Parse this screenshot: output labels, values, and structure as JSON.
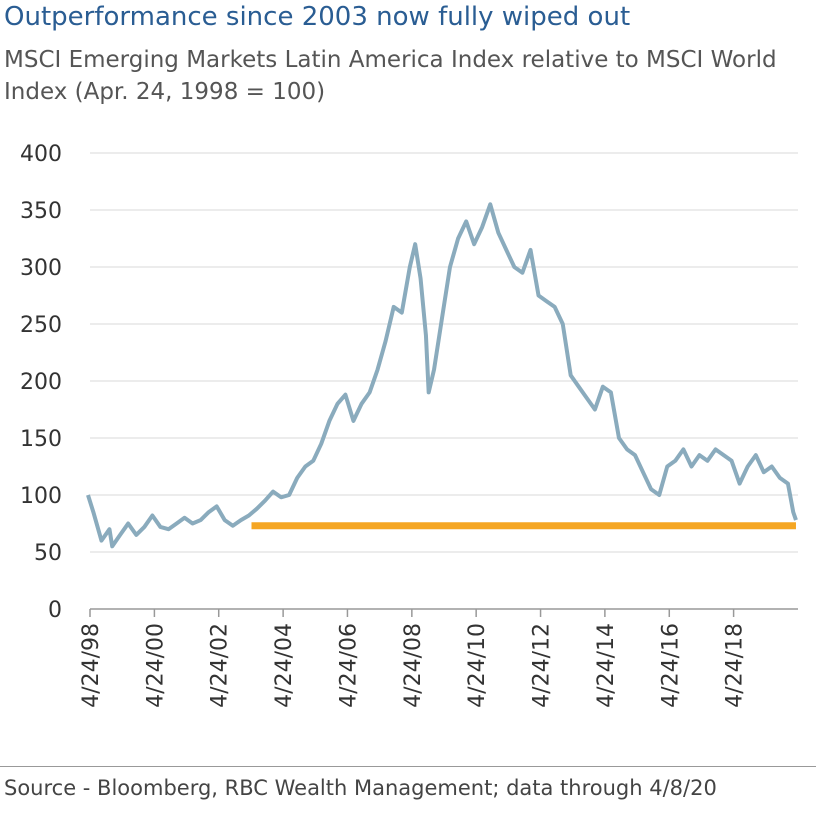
{
  "chart_data": {
    "type": "line",
    "title": "Outperformance since 2003 now fully wiped out",
    "subtitle": "MSCI Emerging Markets Latin America Index relative to MSCI World Index (Apr. 24, 1998 = 100)",
    "source": "Source - Bloomberg, RBC Wealth Management; data through 4/8/20",
    "x": [
      "1998-04",
      "1998-06",
      "1998-09",
      "1998-12",
      "1999-01",
      "1999-04",
      "1999-07",
      "1999-10",
      "2000-01",
      "2000-04",
      "2000-07",
      "2000-10",
      "2001-01",
      "2001-04",
      "2001-07",
      "2001-10",
      "2002-01",
      "2002-04",
      "2002-07",
      "2002-10",
      "2003-01",
      "2003-04",
      "2003-07",
      "2003-10",
      "2004-01",
      "2004-04",
      "2004-07",
      "2004-10",
      "2005-01",
      "2005-04",
      "2005-07",
      "2005-10",
      "2006-01",
      "2006-04",
      "2006-07",
      "2006-10",
      "2007-01",
      "2007-04",
      "2007-07",
      "2007-10",
      "2008-01",
      "2008-04",
      "2008-06",
      "2008-08",
      "2008-10",
      "2008-11",
      "2009-01",
      "2009-04",
      "2009-07",
      "2009-10",
      "2010-01",
      "2010-04",
      "2010-07",
      "2010-10",
      "2011-01",
      "2011-04",
      "2011-07",
      "2011-10",
      "2012-01",
      "2012-04",
      "2012-07",
      "2012-10",
      "2013-01",
      "2013-04",
      "2013-07",
      "2013-10",
      "2014-01",
      "2014-04",
      "2014-07",
      "2014-10",
      "2015-01",
      "2015-04",
      "2015-07",
      "2015-10",
      "2016-01",
      "2016-04",
      "2016-07",
      "2016-10",
      "2017-01",
      "2017-04",
      "2017-07",
      "2017-10",
      "2018-01",
      "2018-04",
      "2018-07",
      "2018-10",
      "2019-01",
      "2019-04",
      "2019-07",
      "2019-10",
      "2020-01",
      "2020-03",
      "2020-04"
    ],
    "series": [
      {
        "name": "MSCI EM Latin America relative to MSCI World",
        "color": "#8aabbd",
        "values": [
          100,
          85,
          60,
          70,
          55,
          65,
          75,
          65,
          72,
          82,
          72,
          70,
          75,
          80,
          75,
          78,
          85,
          90,
          78,
          73,
          78,
          82,
          88,
          95,
          103,
          98,
          100,
          115,
          125,
          130,
          145,
          165,
          180,
          188,
          165,
          180,
          190,
          210,
          235,
          265,
          260,
          300,
          320,
          290,
          240,
          190,
          210,
          255,
          300,
          325,
          340,
          320,
          335,
          355,
          330,
          315,
          300,
          295,
          315,
          275,
          270,
          265,
          250,
          205,
          195,
          185,
          175,
          195,
          190,
          150,
          140,
          135,
          120,
          105,
          100,
          125,
          130,
          140,
          125,
          135,
          130,
          140,
          135,
          130,
          110,
          125,
          135,
          120,
          125,
          115,
          110,
          85,
          78
        ]
      }
    ],
    "reference_line": {
      "x": [
        "2003-05",
        "2020-04"
      ],
      "value": 73,
      "color": "#f5a623"
    },
    "xlim": [
      "1998-04-24",
      "2020-04-24"
    ],
    "xticks": [
      {
        "value": "1998-04-24",
        "label": "4/24/98"
      },
      {
        "value": "2000-04-24",
        "label": "4/24/00"
      },
      {
        "value": "2002-04-24",
        "label": "4/24/02"
      },
      {
        "value": "2004-04-24",
        "label": "4/24/04"
      },
      {
        "value": "2006-04-24",
        "label": "4/24/06"
      },
      {
        "value": "2008-04-24",
        "label": "4/24/08"
      },
      {
        "value": "2010-04-24",
        "label": "4/24/10"
      },
      {
        "value": "2012-04-24",
        "label": "4/24/12"
      },
      {
        "value": "2014-04-24",
        "label": "4/24/14"
      },
      {
        "value": "2016-04-24",
        "label": "4/24/16"
      },
      {
        "value": "2018-04-24",
        "label": "4/24/18"
      }
    ],
    "ylim": [
      0,
      400
    ],
    "yticks": [
      0,
      50,
      100,
      150,
      200,
      250,
      300,
      350,
      400
    ],
    "grid": true
  }
}
